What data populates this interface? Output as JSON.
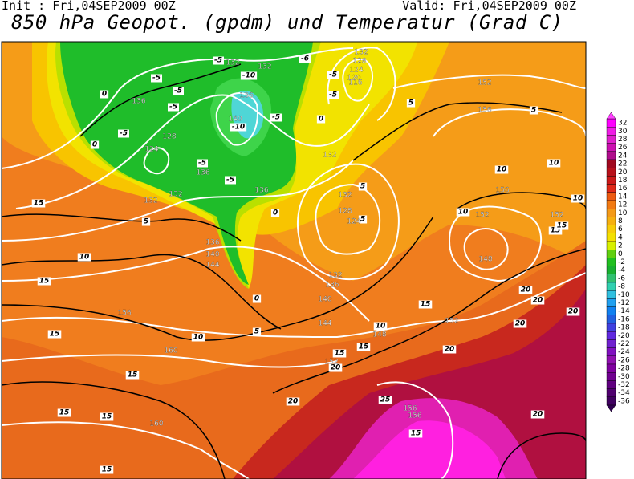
{
  "header": {
    "init": "Init : Fri,04SEP2009 00Z",
    "valid": "Valid: Fri,04SEP2009 00Z",
    "title": "850 hPa Geopot. (gpdm) und Temperatur (Grad C)"
  },
  "colorbar": {
    "labels": [
      "32",
      "30",
      "28",
      "26",
      "24",
      "22",
      "20",
      "18",
      "16",
      "14",
      "12",
      "10",
      "8",
      "6",
      "4",
      "2",
      "0",
      "-2",
      "-4",
      "-6",
      "-8",
      "-10",
      "-12",
      "-14",
      "-16",
      "-18",
      "-20",
      "-22",
      "-24",
      "-26",
      "-28",
      "-30",
      "-32",
      "-34",
      "-36"
    ]
  },
  "contour_labels": {
    "temperature": [
      "-5",
      "-6",
      "-5",
      "0",
      "-5",
      "-5",
      "-5",
      "-5",
      "0",
      "-5",
      "-5",
      "0",
      "5",
      "-5",
      "-5",
      "0",
      "5",
      "5",
      "5",
      "10",
      "15",
      "15",
      "15",
      "15",
      "15",
      "15",
      "15",
      "10",
      "5",
      "10",
      "15",
      "15",
      "20",
      "20",
      "25",
      "20",
      "15",
      "20",
      "15",
      "5",
      "10",
      "10",
      "10",
      "10",
      "15",
      "15",
      "20",
      "20",
      "20",
      "20",
      "0",
      "-10",
      "-10"
    ],
    "geopotential": [
      "132",
      "132",
      "132",
      "128",
      "124",
      "120",
      "116",
      "136",
      "136",
      "140",
      "128",
      "124",
      "136",
      "132",
      "132",
      "136",
      "132",
      "152",
      "156",
      "156",
      "152",
      "152",
      "132",
      "128",
      "124",
      "136",
      "140",
      "144",
      "148",
      "132",
      "136",
      "140",
      "144",
      "148",
      "152",
      "152",
      "156",
      "160",
      "160",
      "156",
      "156"
    ]
  }
}
